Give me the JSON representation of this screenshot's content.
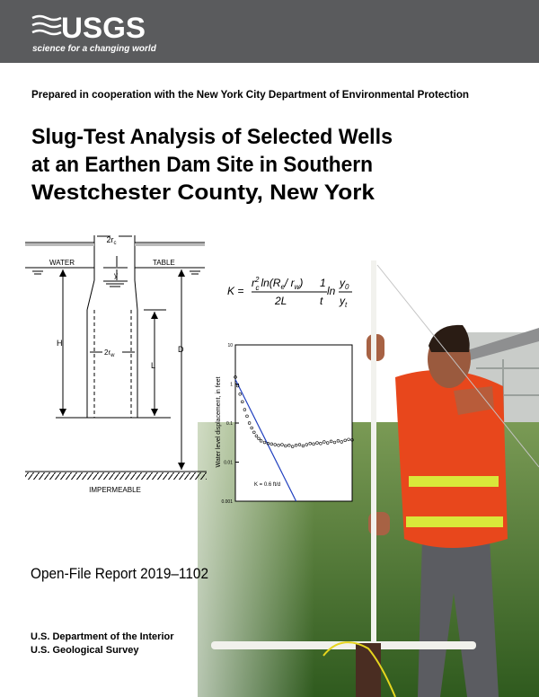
{
  "header": {
    "logo": "USGS",
    "tagline": "science for a changing world"
  },
  "cooperation": "Prepared in cooperation with the New York City Department of Environmental Protection",
  "title": [
    "Slug-Test Analysis of Selected Wells",
    "at an Earthen Dam Site in Southern",
    "Westchester County, New York"
  ],
  "diagram": {
    "casing": {
      "text": "2r",
      "sub": "c"
    },
    "water": "WATER",
    "table": "TABLE",
    "y": "y",
    "h": "H",
    "screen": {
      "text": "2r",
      "sub": "w"
    },
    "l": "L",
    "d": "D",
    "impermeable": "IMPERMEABLE"
  },
  "formula": {
    "lhs": "K =",
    "num_a": "r",
    "num_a_sup": "2",
    "num_a_sub": "c",
    "num_b": "ln(R",
    "num_b_sub": "e",
    "num_c": "/ r",
    "num_c_sub": "w",
    "num_d": ")",
    "den": "2L",
    "frac2_num": "1",
    "frac2_den": "t",
    "ln": "ln",
    "frac3_num": "y",
    "frac3_num_sub": "0",
    "frac3_den": "y",
    "frac3_den_sub": "t"
  },
  "figure": {
    "chart": {
      "type": "scatter",
      "ylabel": "Water level displacement, in feet",
      "annotation": "K = 0.6 ft/d",
      "log_y": true,
      "ylim": [
        0.001,
        10
      ],
      "yticks": [
        0.001,
        0.01,
        0.1,
        1,
        10
      ],
      "xlim": [
        0,
        100
      ],
      "series": {
        "x": [
          0,
          2,
          4,
          6,
          8,
          10,
          12,
          14,
          16,
          18,
          20,
          22,
          25,
          28,
          31,
          34,
          37,
          40,
          43,
          46,
          49,
          52,
          55,
          58,
          61,
          64,
          67,
          70,
          73,
          76,
          79,
          82,
          85,
          88,
          91,
          94,
          97,
          100
        ],
        "values": [
          1.5,
          0.9,
          0.55,
          0.35,
          0.22,
          0.15,
          0.1,
          0.075,
          0.058,
          0.047,
          0.04,
          0.035,
          0.032,
          0.03,
          0.029,
          0.028,
          0.027,
          0.028,
          0.026,
          0.027,
          0.025,
          0.027,
          0.028,
          0.026,
          0.028,
          0.03,
          0.029,
          0.031,
          0.03,
          0.033,
          0.031,
          0.034,
          0.032,
          0.035,
          0.033,
          0.036,
          0.038,
          0.037
        ],
        "color": "#000000"
      },
      "fit": {
        "x": [
          0,
          52
        ],
        "y": [
          1.3,
          0.001
        ],
        "color": "#1f3fbf"
      }
    }
  },
  "report": "Open-File Report 2019–1102",
  "footer": [
    "U.S. Department of the Interior",
    "U.S. Geological Survey"
  ]
}
